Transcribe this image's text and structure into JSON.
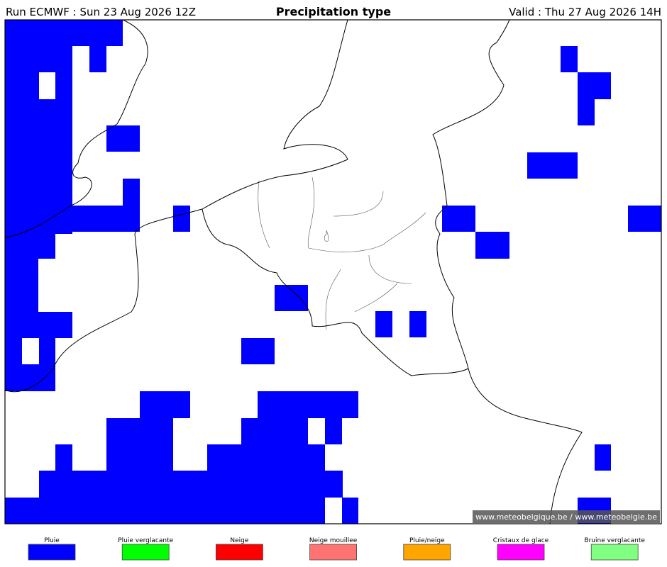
{
  "header": {
    "run": "Run ECMWF : Sun 23 Aug 2026 12Z",
    "title": "Precipitation type",
    "valid": "Valid : Thu 27 Aug 2026 14H"
  },
  "credit": "© www.meteobelgique.be / www.meteobelgie.be",
  "legend": [
    {
      "label": "Pluie",
      "color": "#0000ff"
    },
    {
      "label": "Pluie verglacante",
      "color": "#00ff00"
    },
    {
      "label": "Neige",
      "color": "#ff0000"
    },
    {
      "label": "Neige mouillee",
      "color": "#ff7373"
    },
    {
      "label": "Pluie/neige",
      "color": "#ffa500"
    },
    {
      "label": "Cristaux de glace",
      "color": "#ff00ff"
    },
    {
      "label": "Bruine verglacante",
      "color": "#80ff80"
    }
  ]
}
